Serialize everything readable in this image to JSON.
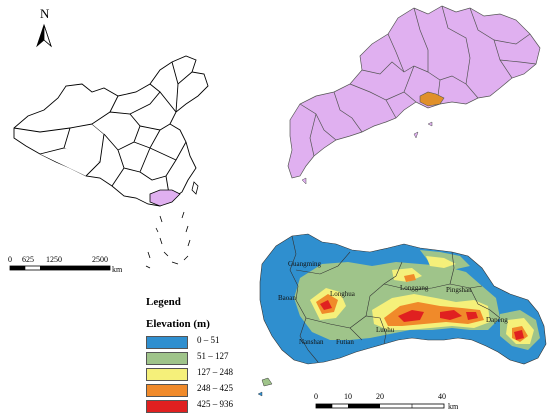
{
  "north_arrow": {
    "letter": "N"
  },
  "scale_bar_china": {
    "ticks": [
      "0",
      "625",
      "1250",
      "2500"
    ],
    "unit": "km"
  },
  "scale_bar_shenzhen": {
    "ticks": [
      "0",
      "10",
      "20",
      "40"
    ],
    "unit": "km"
  },
  "legend": {
    "title": "Legend",
    "subtitle": "Elevation (m)",
    "classes": [
      {
        "label": "0 – 51",
        "color": "#2f8fcf"
      },
      {
        "label": "51 – 127",
        "color": "#9fc48a"
      },
      {
        "label": "127 – 248",
        "color": "#f5f07a"
      },
      {
        "label": "248 – 425",
        "color": "#f08a2a"
      },
      {
        "label": "425 – 936",
        "color": "#e02020"
      }
    ]
  },
  "districts": [
    "Guangming",
    "Longhua",
    "Longgang",
    "Pingshan",
    "Baoan",
    "Nanshan",
    "Futian",
    "Luohu",
    "Dapeng"
  ],
  "colors": {
    "guangdong_fill": "#e0b0f0",
    "shenzhen_highlight": "#e0902a",
    "china_highlight": "#e0b0f0"
  }
}
